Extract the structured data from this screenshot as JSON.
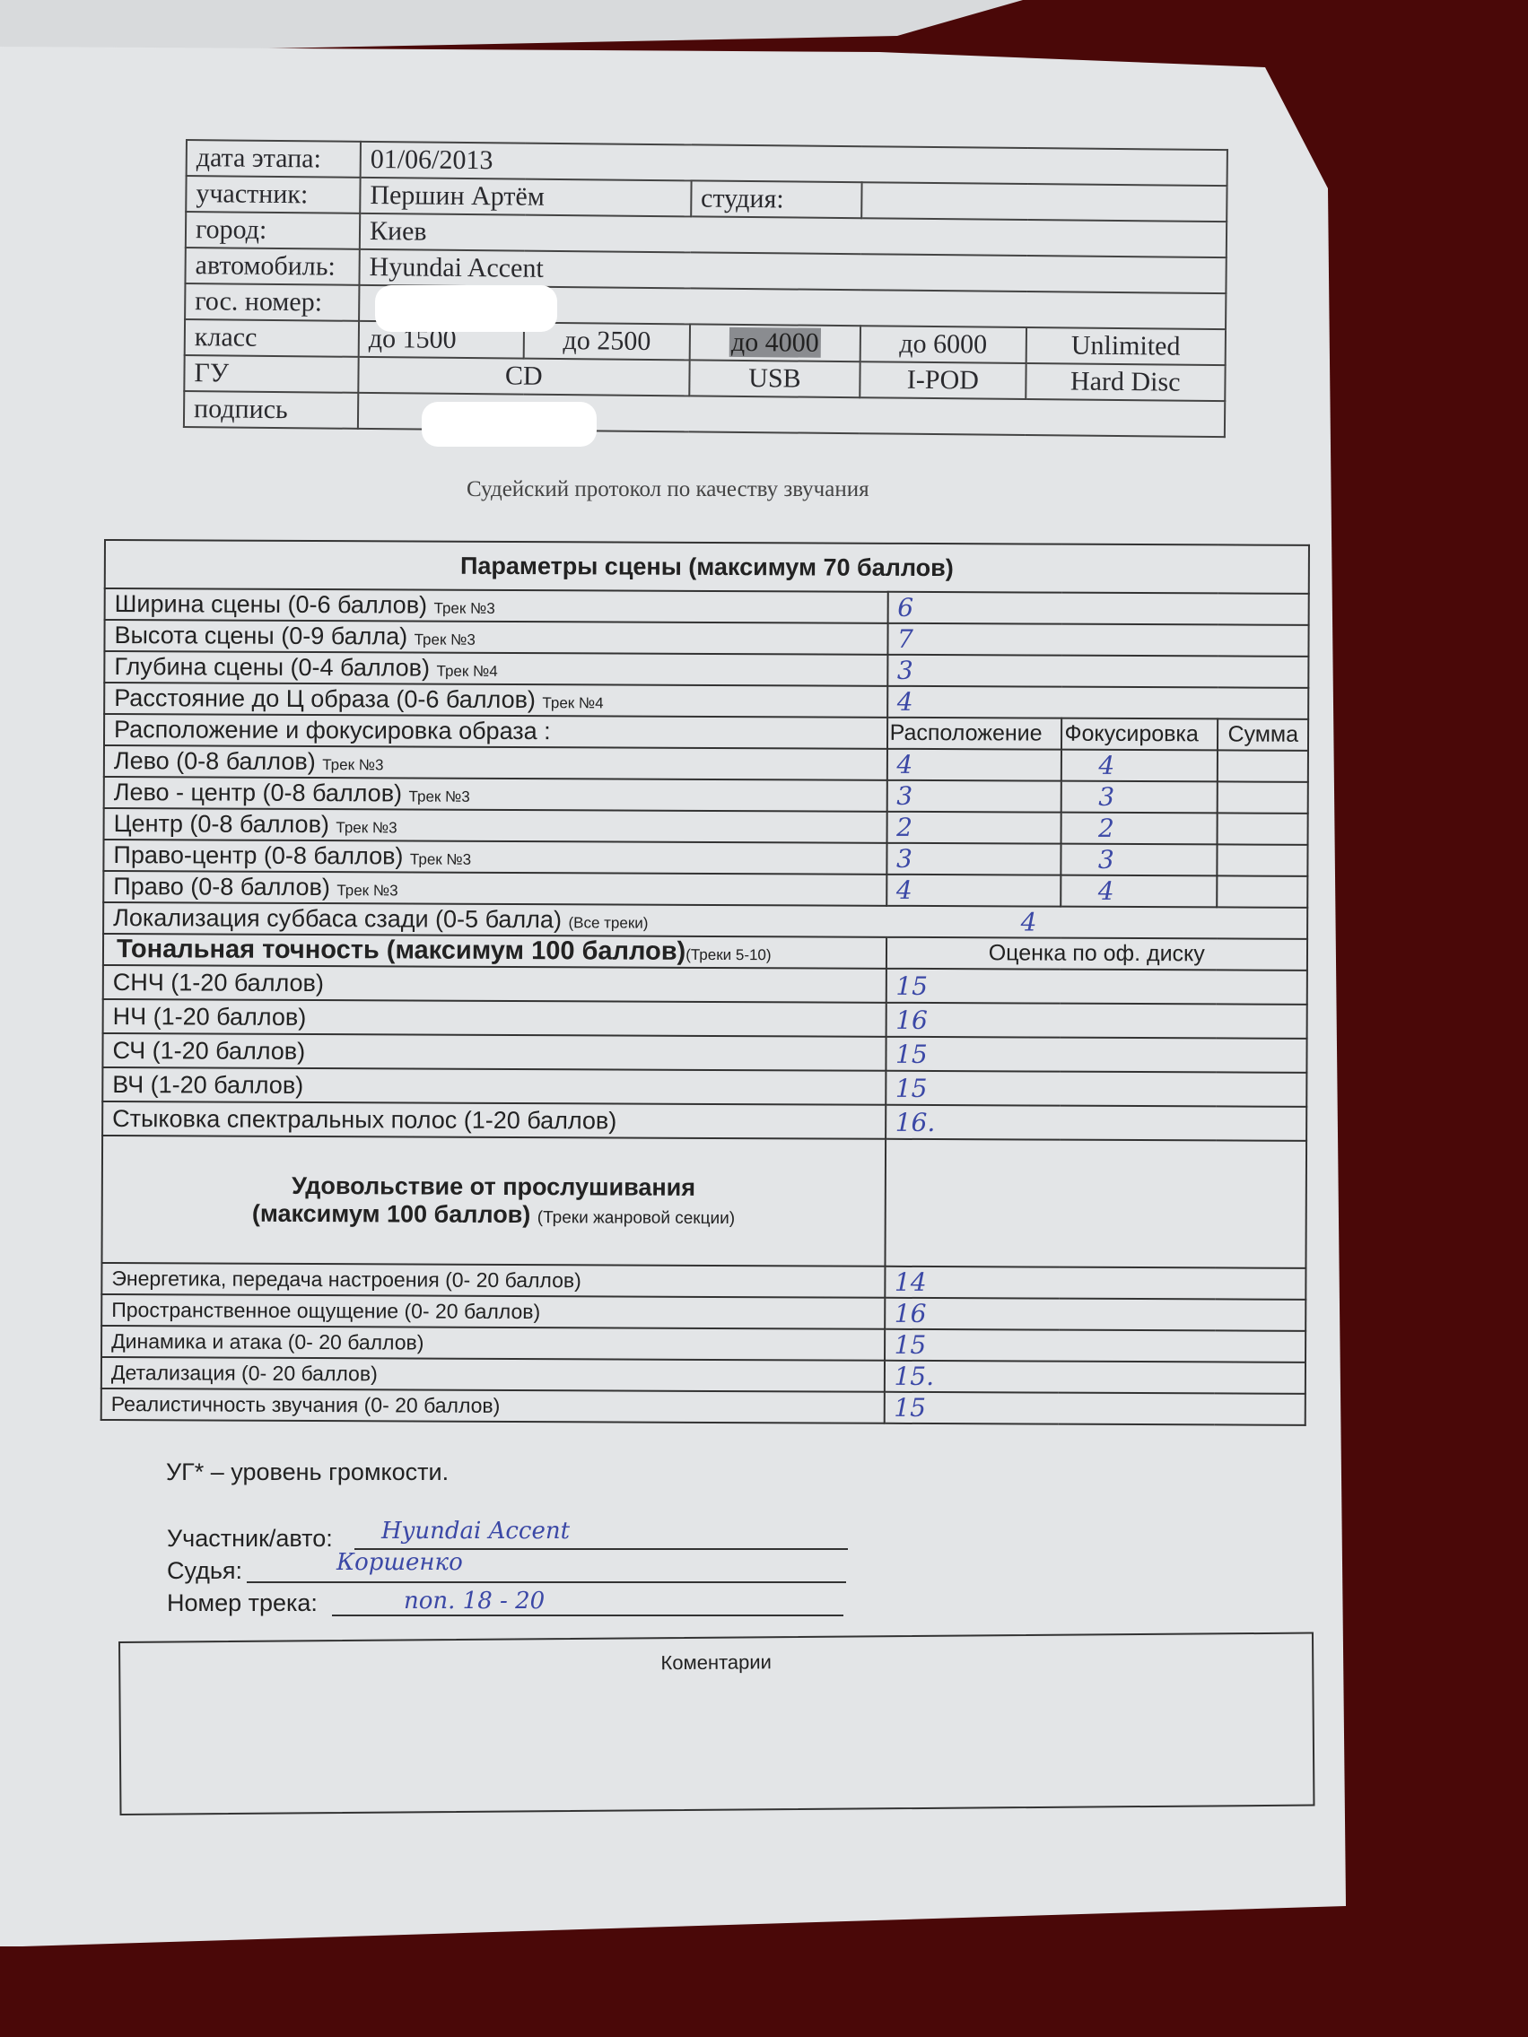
{
  "header_table": {
    "date_label": "дата этапа:",
    "date_value": "01/06/2013",
    "participant_label": "участник:",
    "participant_value": "Першин Артём",
    "studio_label": "студия:",
    "city_label": "город:",
    "city_value": "Киев",
    "car_label": "автомобиль:",
    "car_value": "Hyundai Accent",
    "plate_label": "гос. номер:",
    "class_label": "класс",
    "classes": [
      "до 1500",
      "до 2500",
      "до 4000",
      "до 6000",
      "Unlimited"
    ],
    "selected_class": "до 4000",
    "hu_label": "ГУ",
    "hu_options": [
      "CD",
      "USB",
      "I-POD",
      "Hard Disc"
    ],
    "signature_label": "подпись"
  },
  "caption": "Судейский протокол по качеству звучания",
  "scene": {
    "title": "Параметры сцены (максимум 70 баллов)",
    "rows": [
      {
        "label": "Ширина сцены (0-6 баллов)",
        "track": "Трек №3",
        "value": "6"
      },
      {
        "label": "Высота сцены (0-9 балла)",
        "track": "Трек №3",
        "value": "7"
      },
      {
        "label": "Глубина сцены (0-4 баллов)",
        "track": "Трек №4",
        "value": "3"
      },
      {
        "label": "Расстояние до Ц образа (0-6 баллов)",
        "track": "Трек №4",
        "value": "4"
      }
    ],
    "placement_label": "Расположение и фокусировка образа :",
    "placement_cols": [
      "Расположение",
      "Фокусировка",
      "Сумма"
    ],
    "placement_rows": [
      {
        "label": "Лево (0-8 баллов)",
        "track": "Трек №3",
        "placement": "4",
        "focus": "4"
      },
      {
        "label": "Лево - центр (0-8 баллов)",
        "track": "Трек №3",
        "placement": "3",
        "focus": "3"
      },
      {
        "label": "Центр (0-8 баллов)",
        "track": "Трек №3",
        "placement": "2",
        "focus": "2"
      },
      {
        "label": "Право-центр (0-8 баллов)",
        "track": "Трек №3",
        "placement": "3",
        "focus": "3"
      },
      {
        "label": "Право (0-8 баллов)",
        "track": "Трек №3",
        "placement": "4",
        "focus": "4"
      }
    ],
    "sub_label": "Локализация суббаса сзади (0-5 балла)",
    "sub_track": "(Все треки)",
    "sub_value": "4"
  },
  "tonal": {
    "title": "Тональная точность (максимум 100 баллов)",
    "tracks": "(Треки 5-10)",
    "col": "Оценка по оф. диску",
    "rows": [
      {
        "label": "СНЧ (1-20 баллов)",
        "value": "15"
      },
      {
        "label": "НЧ  (1-20 баллов)",
        "value": "16"
      },
      {
        "label": "СЧ  (1-20 баллов)",
        "value": "15"
      },
      {
        "label": "ВЧ  (1-20 баллов)",
        "value": "15"
      },
      {
        "label": "Стыковка спектральных полос   (1-20 баллов)",
        "value": "16."
      }
    ]
  },
  "pleasure": {
    "title1": "Удовольствие от прослушивания",
    "title2": "(максимум 100 баллов)",
    "tracks": "(Треки жанровой секции)",
    "rows": [
      {
        "label": "Энергетика, передача настроения (0- 20 баллов)",
        "value": "14"
      },
      {
        "label": "Пространственное ощущение (0- 20 баллов)",
        "value": "16"
      },
      {
        "label": "Динамика и атака (0- 20 баллов)",
        "value": "15"
      },
      {
        "label": "Детализация (0- 20 баллов)",
        "value": "15."
      },
      {
        "label": "Реалистичность звучания  (0- 20 баллов)",
        "value": "15"
      }
    ]
  },
  "footnote": "УГ* – уровень громкости.",
  "footer": {
    "participant_label": "Участник/авто:",
    "participant_value": "Hyundai Accent",
    "judge_label": "Судья:",
    "judge_value": "Коршенко",
    "track_label": "Номер трека:",
    "track_value": "поп. 18 - 20"
  },
  "comments_label": "Коментарии",
  "colors": {
    "ink": "#3b48a6",
    "paper": "#e3e5e7",
    "background": "#4a0808"
  }
}
